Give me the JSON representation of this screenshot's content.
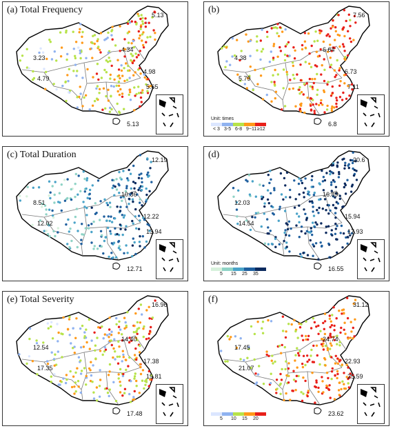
{
  "panels": [
    {
      "title": "(a) Total Frequency",
      "scheme": "freq",
      "labels": [
        "5.13",
        "4.34",
        "3.23",
        "4.79",
        "4.98",
        "5.65",
        "5.13"
      ]
    },
    {
      "title": "(b)",
      "scheme": "freq",
      "labels": [
        "7.56",
        "6.64",
        "4.38",
        "5.79",
        "6.73",
        "7.11",
        "6.8"
      ]
    },
    {
      "title": "(c) Total Duration",
      "scheme": "dur",
      "labels": [
        "12.19",
        "10.36",
        "8.51",
        "12.02",
        "12.22",
        "13.94",
        "12.71"
      ]
    },
    {
      "title": "(d)",
      "scheme": "dur",
      "labels": [
        "20.6",
        "16.89",
        "12.03",
        "14.54",
        "15.94",
        "17.93",
        "16.55"
      ]
    },
    {
      "title": "(e) Total Severity",
      "scheme": "sev",
      "labels": [
        "16.96",
        "14.40",
        "12.54",
        "17.35",
        "17.38",
        "19.81",
        "17.48"
      ]
    },
    {
      "title": "(f)",
      "scheme": "sev",
      "labels": [
        "31.12",
        "24.74",
        "17.45",
        "21.07",
        "22.93",
        "25.59",
        "23.62"
      ]
    }
  ],
  "legends": {
    "freq": {
      "unit": "Unit: times",
      "ticks": [
        "< 3",
        "3-5",
        "6-8",
        "9~11",
        "≥12"
      ],
      "colors": [
        "#dbe6ff",
        "#8fb2f0",
        "#b7e34a",
        "#ff9a1a",
        "#e8201a"
      ]
    },
    "dur": {
      "unit": "Unit: months",
      "ticks": [
        "5",
        "15",
        "25",
        "35"
      ],
      "colors": [
        "#d7f1dc",
        "#8fd3c6",
        "#4aa3c8",
        "#1f5f9e",
        "#0b2a5e"
      ]
    },
    "sev": {
      "unit": "",
      "ticks": [
        "5",
        "10",
        "15",
        "20"
      ],
      "colors": [
        "#dbe6ff",
        "#8fb2f0",
        "#b7e34a",
        "#ff9a1a",
        "#e8201a"
      ]
    }
  }
}
